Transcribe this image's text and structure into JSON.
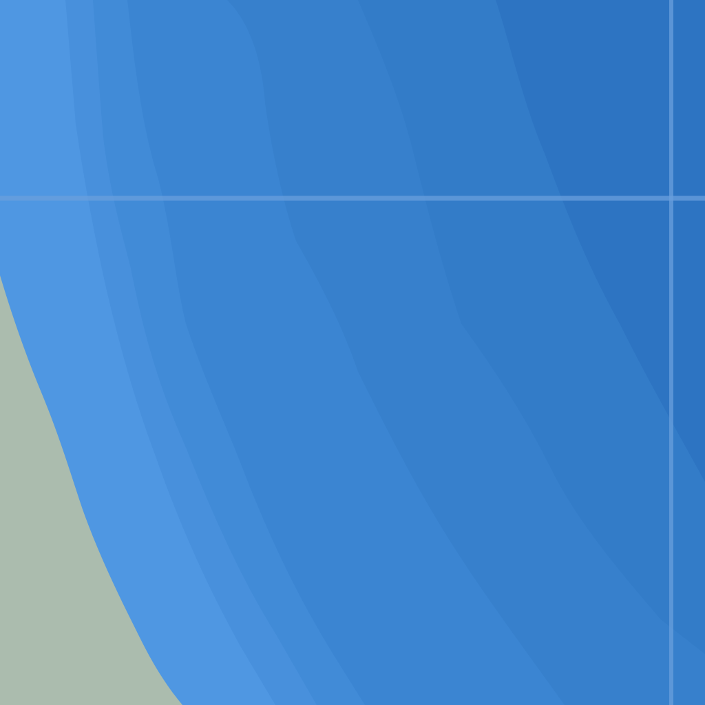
{
  "map": {
    "colors": {
      "land": "#abbcae",
      "water_shallow": "#4f97e2",
      "water_band_2": "#4890dc",
      "water_band_3": "#418bd7",
      "water_band_4": "#3b85d2",
      "water_band_5": "#3780cc",
      "water_band_6": "#337cc8",
      "water_deep": "#2d74c2",
      "graticule": "#6a9fdc"
    },
    "layers": [
      "land",
      "bathymetry-bands",
      "graticule"
    ]
  }
}
